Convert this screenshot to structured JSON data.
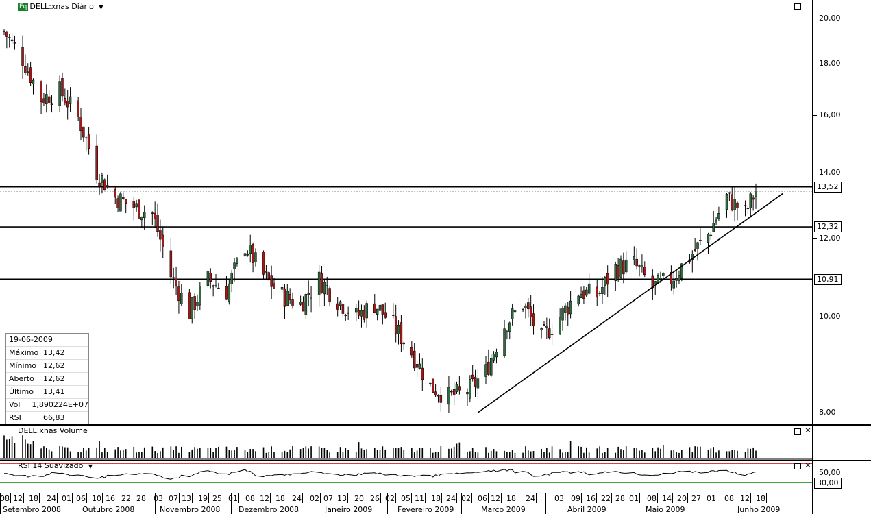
{
  "price_panel": {
    "title": "DELL:xnas Diário",
    "eq_badge": "Eq",
    "y_ticks": [
      "20,00",
      "18,00",
      "16,00",
      "14,00",
      "12,00",
      "10,00",
      "8,00"
    ],
    "level_labels": [
      "13,52",
      "12,32",
      "10,91"
    ]
  },
  "info_box": {
    "date": "19-06-2009",
    "rows": [
      {
        "label": "Máximo",
        "value": "13,42"
      },
      {
        "label": "Mínimo",
        "value": "12,62"
      },
      {
        "label": "Aberto",
        "value": "12,62"
      },
      {
        "label": "Último",
        "value": "13,41"
      },
      {
        "label": "Vol",
        "value": "1,890224E+07"
      },
      {
        "label": "RSI",
        "value": "66,83"
      }
    ]
  },
  "volume_panel": {
    "title": "DELL:xnas Volume"
  },
  "rsi_panel": {
    "title": "RSI 14 Suavizado",
    "levels": [
      "50,00",
      "30,00"
    ]
  },
  "x_axis": {
    "day_ticks": [
      "08",
      "12",
      "18",
      "24",
      "01",
      "06",
      "10",
      "16",
      "22",
      "28",
      "03",
      "07",
      "13",
      "19",
      "25",
      "01",
      "08",
      "12",
      "18",
      "24",
      "02",
      "07",
      "13",
      "20",
      "26",
      "02",
      "05",
      "11",
      "18",
      "24",
      "02",
      "06",
      "12",
      "18",
      "24",
      "03",
      "09",
      "16",
      "22",
      "28",
      "01",
      "08",
      "14",
      "20",
      "27",
      "01",
      "08",
      "12",
      "18"
    ],
    "months": [
      "Setembro 2008",
      "Outubro 2008",
      "Novembro 2008",
      "Dezembro 2008",
      "Janeiro 2009",
      "Fevereiro 2009",
      "Março 2009",
      "Abril 2009",
      "Maio 2009",
      "Junho 2009"
    ]
  },
  "colors": {
    "up": "#2f6b3f",
    "down": "#9e1b1b",
    "rsi_high": "#cc0000",
    "rsi_low": "#008800"
  },
  "chart_data": {
    "type": "candlestick",
    "symbol": "DELL:xnas",
    "interval": "Diário",
    "ylim": [
      7.8,
      20.5
    ],
    "y_scale": "log",
    "horizontal_levels": [
      13.52,
      12.32,
      10.91
    ],
    "trendline": {
      "from": [
        "2009-03-06",
        8.0
      ],
      "to": [
        "2009-06-22",
        12.9
      ]
    },
    "series_approx_close": [
      [
        "2008-09-08",
        19.4
      ],
      [
        "2008-09-15",
        18.2
      ],
      [
        "2008-09-22",
        16.6
      ],
      [
        "2008-09-29",
        16.9
      ],
      [
        "2008-10-06",
        15.9
      ],
      [
        "2008-10-13",
        14.0
      ],
      [
        "2008-10-20",
        13.2
      ],
      [
        "2008-10-27",
        12.9
      ],
      [
        "2008-11-03",
        12.7
      ],
      [
        "2008-11-10",
        11.0
      ],
      [
        "2008-11-17",
        10.1
      ],
      [
        "2008-11-24",
        10.9
      ],
      [
        "2008-12-01",
        10.6
      ],
      [
        "2008-12-08",
        11.8
      ],
      [
        "2008-12-15",
        11.0
      ],
      [
        "2008-12-22",
        10.5
      ],
      [
        "2008-12-29",
        10.3
      ],
      [
        "2009-01-05",
        10.9
      ],
      [
        "2009-01-12",
        10.4
      ],
      [
        "2009-01-19",
        10.0
      ],
      [
        "2009-01-26",
        10.3
      ],
      [
        "2009-02-02",
        9.8
      ],
      [
        "2009-02-09",
        9.2
      ],
      [
        "2009-02-16",
        8.5
      ],
      [
        "2009-02-23",
        8.3
      ],
      [
        "2009-03-02",
        8.4
      ],
      [
        "2009-03-09",
        8.8
      ],
      [
        "2009-03-16",
        9.8
      ],
      [
        "2009-03-23",
        10.3
      ],
      [
        "2009-03-30",
        9.5
      ],
      [
        "2009-04-06",
        10.0
      ],
      [
        "2009-04-13",
        10.6
      ],
      [
        "2009-04-20",
        10.5
      ],
      [
        "2009-04-27",
        11.2
      ],
      [
        "2009-05-04",
        11.3
      ],
      [
        "2009-05-11",
        10.7
      ],
      [
        "2009-05-18",
        10.9
      ],
      [
        "2009-05-25",
        11.5
      ],
      [
        "2009-06-01",
        12.1
      ],
      [
        "2009-06-08",
        13.2
      ],
      [
        "2009-06-15",
        12.7
      ],
      [
        "2009-06-19",
        13.41
      ]
    ],
    "rsi_levels": [
      50,
      30
    ]
  }
}
